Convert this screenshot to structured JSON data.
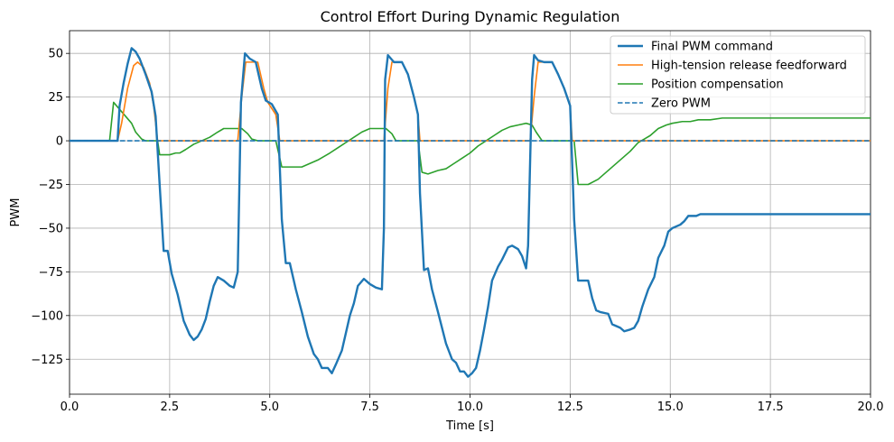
{
  "chart_data": {
    "type": "line",
    "title": "Control Effort During Dynamic Regulation",
    "xlabel": "Time [s]",
    "ylabel": "PWM",
    "xlim": [
      0,
      20
    ],
    "ylim": [
      -145,
      63
    ],
    "grid": true,
    "legend_position": "top-right",
    "x_ticks": [
      0,
      2.5,
      5,
      7.5,
      10,
      12.5,
      15,
      17.5,
      20
    ],
    "x_tick_labels": [
      "0.0",
      "2.5",
      "5.0",
      "7.5",
      "10.0",
      "12.5",
      "15.0",
      "17.5",
      "20.0"
    ],
    "y_ticks": [
      50,
      25,
      0,
      -25,
      -50,
      -75,
      -100,
      -125
    ],
    "y_tick_labels": [
      "50",
      "25",
      "0",
      "−25",
      "−50",
      "−75",
      "−100",
      "−125"
    ],
    "series": [
      {
        "name": "Final PWM command",
        "color": "#1f77b4",
        "style": "solid",
        "width": 2.4,
        "points": [
          [
            0,
            0
          ],
          [
            1.2,
            0
          ],
          [
            1.25,
            20
          ],
          [
            1.35,
            33
          ],
          [
            1.45,
            44
          ],
          [
            1.55,
            53
          ],
          [
            1.65,
            51
          ],
          [
            1.75,
            47
          ],
          [
            1.9,
            38
          ],
          [
            2.05,
            28
          ],
          [
            2.15,
            14
          ],
          [
            2.25,
            -25
          ],
          [
            2.35,
            -63
          ],
          [
            2.45,
            -63
          ],
          [
            2.55,
            -76
          ],
          [
            2.7,
            -88
          ],
          [
            2.85,
            -103
          ],
          [
            3.0,
            -111
          ],
          [
            3.1,
            -114
          ],
          [
            3.2,
            -112
          ],
          [
            3.3,
            -108
          ],
          [
            3.4,
            -102
          ],
          [
            3.5,
            -92
          ],
          [
            3.6,
            -83
          ],
          [
            3.7,
            -78
          ],
          [
            3.85,
            -80
          ],
          [
            4.0,
            -83
          ],
          [
            4.1,
            -84
          ],
          [
            4.2,
            -75
          ],
          [
            4.28,
            22
          ],
          [
            4.38,
            50
          ],
          [
            4.5,
            47
          ],
          [
            4.65,
            45
          ],
          [
            4.8,
            30
          ],
          [
            4.9,
            23
          ],
          [
            5.05,
            21
          ],
          [
            5.2,
            15
          ],
          [
            5.3,
            -45
          ],
          [
            5.4,
            -70
          ],
          [
            5.5,
            -70
          ],
          [
            5.65,
            -85
          ],
          [
            5.8,
            -98
          ],
          [
            5.95,
            -112
          ],
          [
            6.1,
            -122
          ],
          [
            6.2,
            -125
          ],
          [
            6.3,
            -130
          ],
          [
            6.45,
            -130
          ],
          [
            6.55,
            -133
          ],
          [
            6.65,
            -128
          ],
          [
            6.8,
            -120
          ],
          [
            6.9,
            -110
          ],
          [
            7.0,
            -100
          ],
          [
            7.1,
            -93
          ],
          [
            7.2,
            -83
          ],
          [
            7.35,
            -79
          ],
          [
            7.5,
            -82
          ],
          [
            7.65,
            -84
          ],
          [
            7.8,
            -85
          ],
          [
            7.85,
            -50
          ],
          [
            7.88,
            35
          ],
          [
            7.95,
            49
          ],
          [
            8.1,
            45
          ],
          [
            8.3,
            45
          ],
          [
            8.45,
            38
          ],
          [
            8.6,
            25
          ],
          [
            8.7,
            15
          ],
          [
            8.75,
            -30
          ],
          [
            8.85,
            -74
          ],
          [
            8.95,
            -73
          ],
          [
            9.05,
            -85
          ],
          [
            9.2,
            -98
          ],
          [
            9.4,
            -116
          ],
          [
            9.55,
            -125
          ],
          [
            9.65,
            -127
          ],
          [
            9.75,
            -132
          ],
          [
            9.85,
            -132
          ],
          [
            9.95,
            -135
          ],
          [
            10.05,
            -133
          ],
          [
            10.15,
            -130
          ],
          [
            10.25,
            -120
          ],
          [
            10.35,
            -108
          ],
          [
            10.45,
            -95
          ],
          [
            10.55,
            -80
          ],
          [
            10.7,
            -72
          ],
          [
            10.8,
            -68
          ],
          [
            10.95,
            -61
          ],
          [
            11.05,
            -60
          ],
          [
            11.2,
            -62
          ],
          [
            11.3,
            -66
          ],
          [
            11.4,
            -73
          ],
          [
            11.45,
            -60
          ],
          [
            11.55,
            35
          ],
          [
            11.6,
            49
          ],
          [
            11.7,
            46
          ],
          [
            11.85,
            45
          ],
          [
            12.05,
            45
          ],
          [
            12.2,
            38
          ],
          [
            12.35,
            30
          ],
          [
            12.5,
            20
          ],
          [
            12.6,
            -45
          ],
          [
            12.7,
            -80
          ],
          [
            12.85,
            -80
          ],
          [
            12.95,
            -80
          ],
          [
            13.05,
            -90
          ],
          [
            13.15,
            -97
          ],
          [
            13.25,
            -98
          ],
          [
            13.45,
            -99
          ],
          [
            13.55,
            -105
          ],
          [
            13.75,
            -107
          ],
          [
            13.85,
            -109
          ],
          [
            14.0,
            -108
          ],
          [
            14.1,
            -107
          ],
          [
            14.2,
            -103
          ],
          [
            14.3,
            -95
          ],
          [
            14.45,
            -85
          ],
          [
            14.6,
            -78
          ],
          [
            14.7,
            -67
          ],
          [
            14.85,
            -60
          ],
          [
            14.95,
            -52
          ],
          [
            15.05,
            -50
          ],
          [
            15.25,
            -48
          ],
          [
            15.35,
            -46
          ],
          [
            15.45,
            -43
          ],
          [
            15.65,
            -43
          ],
          [
            15.75,
            -42
          ],
          [
            20,
            -42
          ]
        ]
      },
      {
        "name": "High-tension release feedforward",
        "color": "#ff7f0e",
        "style": "solid",
        "width": 1.6,
        "points": [
          [
            0,
            0
          ],
          [
            1.2,
            0
          ],
          [
            1.3,
            10
          ],
          [
            1.45,
            30
          ],
          [
            1.6,
            43
          ],
          [
            1.7,
            45
          ],
          [
            1.85,
            42
          ],
          [
            2.0,
            33
          ],
          [
            2.1,
            20
          ],
          [
            2.2,
            0
          ],
          [
            4.2,
            0
          ],
          [
            4.3,
            25
          ],
          [
            4.4,
            45
          ],
          [
            4.5,
            45
          ],
          [
            4.7,
            45
          ],
          [
            4.85,
            30
          ],
          [
            4.95,
            22
          ],
          [
            5.15,
            15
          ],
          [
            5.25,
            0
          ],
          [
            7.85,
            0
          ],
          [
            7.95,
            30
          ],
          [
            8.05,
            45
          ],
          [
            8.3,
            45
          ],
          [
            8.45,
            38
          ],
          [
            8.6,
            25
          ],
          [
            8.7,
            15
          ],
          [
            8.75,
            0
          ],
          [
            11.5,
            0
          ],
          [
            11.6,
            25
          ],
          [
            11.7,
            45
          ],
          [
            12.05,
            45
          ],
          [
            12.2,
            38
          ],
          [
            12.35,
            30
          ],
          [
            12.5,
            20
          ],
          [
            12.55,
            0
          ],
          [
            20,
            0
          ]
        ]
      },
      {
        "name": "Position compensation",
        "color": "#2ca02c",
        "style": "solid",
        "width": 1.6,
        "points": [
          [
            0,
            0
          ],
          [
            1.0,
            0
          ],
          [
            1.1,
            22
          ],
          [
            1.25,
            18
          ],
          [
            1.4,
            14
          ],
          [
            1.55,
            10
          ],
          [
            1.65,
            5
          ],
          [
            1.8,
            1
          ],
          [
            1.9,
            0
          ],
          [
            2.2,
            0
          ],
          [
            2.25,
            -8
          ],
          [
            2.5,
            -8
          ],
          [
            2.65,
            -7
          ],
          [
            2.75,
            -7
          ],
          [
            2.9,
            -5
          ],
          [
            3.1,
            -2
          ],
          [
            3.3,
            0
          ],
          [
            3.5,
            2
          ],
          [
            3.7,
            5
          ],
          [
            3.85,
            7
          ],
          [
            4.15,
            7
          ],
          [
            4.3,
            7
          ],
          [
            4.45,
            4
          ],
          [
            4.55,
            1
          ],
          [
            4.7,
            0
          ],
          [
            5.15,
            0
          ],
          [
            5.3,
            -15
          ],
          [
            5.8,
            -15
          ],
          [
            6.0,
            -13
          ],
          [
            6.2,
            -11
          ],
          [
            6.5,
            -7
          ],
          [
            6.7,
            -4
          ],
          [
            6.9,
            -1
          ],
          [
            7.1,
            2
          ],
          [
            7.3,
            5
          ],
          [
            7.5,
            7
          ],
          [
            7.9,
            7
          ],
          [
            8.05,
            4
          ],
          [
            8.15,
            0
          ],
          [
            8.7,
            0
          ],
          [
            8.8,
            -18
          ],
          [
            8.95,
            -19
          ],
          [
            9.2,
            -17
          ],
          [
            9.4,
            -16
          ],
          [
            9.6,
            -13
          ],
          [
            9.8,
            -10
          ],
          [
            10.0,
            -7
          ],
          [
            10.2,
            -3
          ],
          [
            10.4,
            0
          ],
          [
            10.6,
            3
          ],
          [
            10.8,
            6
          ],
          [
            11.0,
            8
          ],
          [
            11.2,
            9
          ],
          [
            11.4,
            10
          ],
          [
            11.55,
            9
          ],
          [
            11.65,
            5
          ],
          [
            11.8,
            0
          ],
          [
            12.6,
            0
          ],
          [
            12.7,
            -25
          ],
          [
            12.95,
            -25
          ],
          [
            13.2,
            -22
          ],
          [
            13.4,
            -18
          ],
          [
            13.6,
            -14
          ],
          [
            13.8,
            -10
          ],
          [
            14.0,
            -6
          ],
          [
            14.2,
            -1
          ],
          [
            14.35,
            1
          ],
          [
            14.5,
            3
          ],
          [
            14.7,
            7
          ],
          [
            14.9,
            9
          ],
          [
            15.05,
            10
          ],
          [
            15.3,
            11
          ],
          [
            15.5,
            11
          ],
          [
            15.7,
            12
          ],
          [
            16.0,
            12
          ],
          [
            16.3,
            13
          ],
          [
            20,
            13
          ]
        ]
      },
      {
        "name": "Zero PWM",
        "color": "#1f77b4",
        "style": "dashed",
        "width": 1.6,
        "points": [
          [
            0,
            0
          ],
          [
            20,
            0
          ]
        ]
      }
    ]
  }
}
